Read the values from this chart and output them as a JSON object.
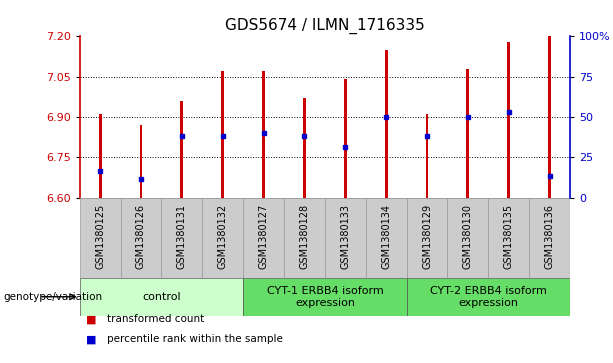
{
  "title": "GDS5674 / ILMN_1716335",
  "samples": [
    "GSM1380125",
    "GSM1380126",
    "GSM1380131",
    "GSM1380132",
    "GSM1380127",
    "GSM1380128",
    "GSM1380133",
    "GSM1380134",
    "GSM1380129",
    "GSM1380130",
    "GSM1380135",
    "GSM1380136"
  ],
  "bar_values": [
    6.91,
    6.87,
    6.96,
    7.07,
    7.07,
    6.97,
    7.04,
    7.15,
    6.91,
    7.08,
    7.18,
    7.21
  ],
  "percentile_values": [
    6.7,
    6.67,
    6.83,
    6.83,
    6.84,
    6.83,
    6.79,
    6.9,
    6.83,
    6.9,
    6.92,
    6.68
  ],
  "bar_bottom": 6.6,
  "ylim_left": [
    6.6,
    7.2
  ],
  "ylim_right": [
    0,
    100
  ],
  "yticks_left": [
    6.6,
    6.75,
    6.9,
    7.05,
    7.2
  ],
  "yticks_right": [
    0,
    25,
    50,
    75,
    100
  ],
  "ytick_labels_right": [
    "0",
    "25",
    "50",
    "75",
    "100%"
  ],
  "hlines": [
    6.75,
    6.9,
    7.05
  ],
  "bar_color": "#cc0000",
  "percentile_color": "#0000cc",
  "bar_width": 0.07,
  "groups": [
    {
      "label": "control",
      "start": 0,
      "end": 4,
      "color": "#ccffcc"
    },
    {
      "label": "CYT-1 ERBB4 isoform\nexpression",
      "start": 4,
      "end": 8,
      "color": "#66dd66"
    },
    {
      "label": "CYT-2 ERBB4 isoform\nexpression",
      "start": 8,
      "end": 12,
      "color": "#66dd66"
    }
  ],
  "xlabel_area_color": "#cccccc",
  "xlabel_border_color": "#999999",
  "legend_items": [
    {
      "label": "transformed count",
      "color": "#cc0000"
    },
    {
      "label": "percentile rank within the sample",
      "color": "#0000cc"
    }
  ],
  "genotype_label": "genotype/variation",
  "title_fontsize": 11,
  "tick_fontsize": 8,
  "label_fontsize": 7,
  "group_fontsize": 8
}
